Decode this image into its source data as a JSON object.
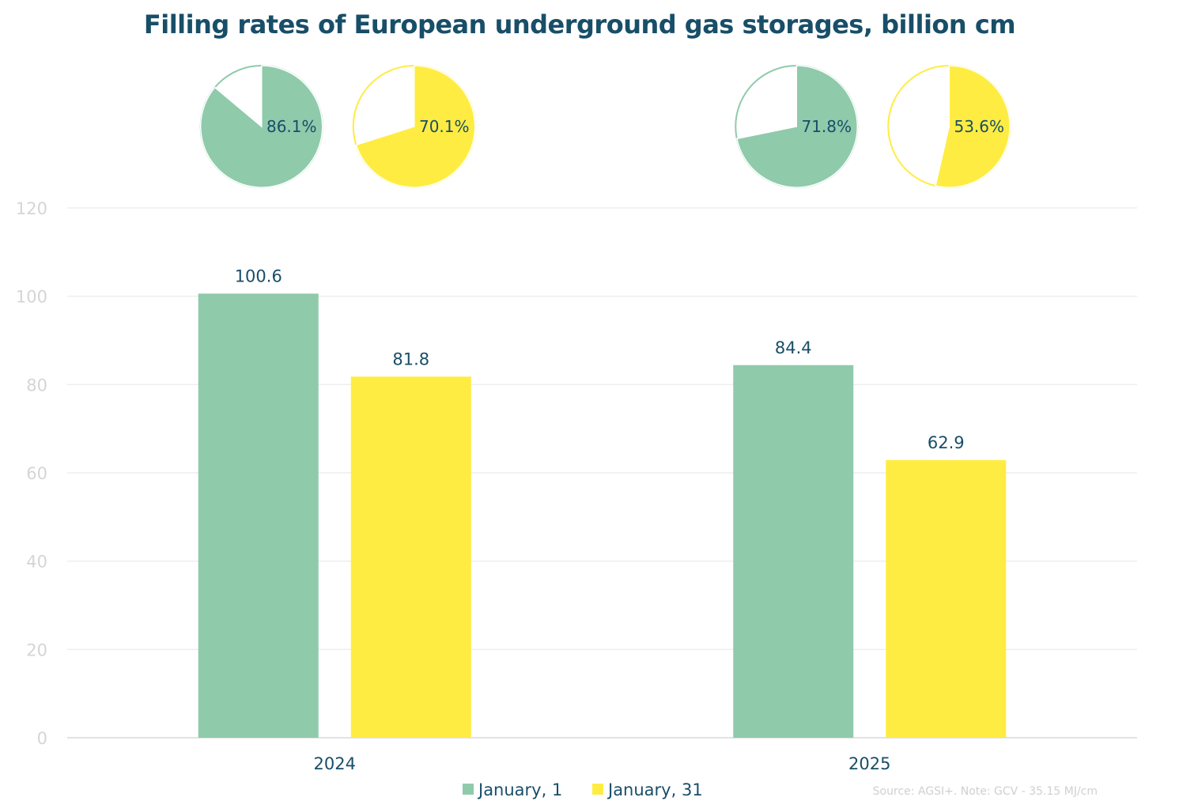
{
  "chart_data": {
    "type": "bar",
    "title": "Filling rates of European underground gas storages, billion cm",
    "categories": [
      "2024",
      "2025"
    ],
    "series": [
      {
        "name": "January, 1",
        "values": [
          100.6,
          84.4
        ],
        "labels": [
          "100.6",
          "84.4"
        ],
        "fill_pct": [
          86.1,
          71.8
        ],
        "fill_labels": [
          "86.1%",
          "71.8%"
        ]
      },
      {
        "name": "January, 31",
        "values": [
          81.8,
          62.9
        ],
        "labels": [
          "81.8",
          "62.9"
        ],
        "fill_pct": [
          70.1,
          53.6
        ],
        "fill_labels": [
          "70.1%",
          "53.6%"
        ]
      }
    ],
    "ylim": [
      0,
      120
    ],
    "yticks": [
      0,
      20,
      40,
      60,
      80,
      100,
      120
    ],
    "ytick_labels": [
      "0",
      "20",
      "40",
      "60",
      "80",
      "100",
      "120"
    ],
    "grid": true,
    "legend": "bottom",
    "colors": {
      "January, 1": "#8fcaab",
      "January, 31": "#ffec42"
    },
    "source_note": "Source: AGSI+. Note: GCV - 35.15 MJ/cm"
  }
}
